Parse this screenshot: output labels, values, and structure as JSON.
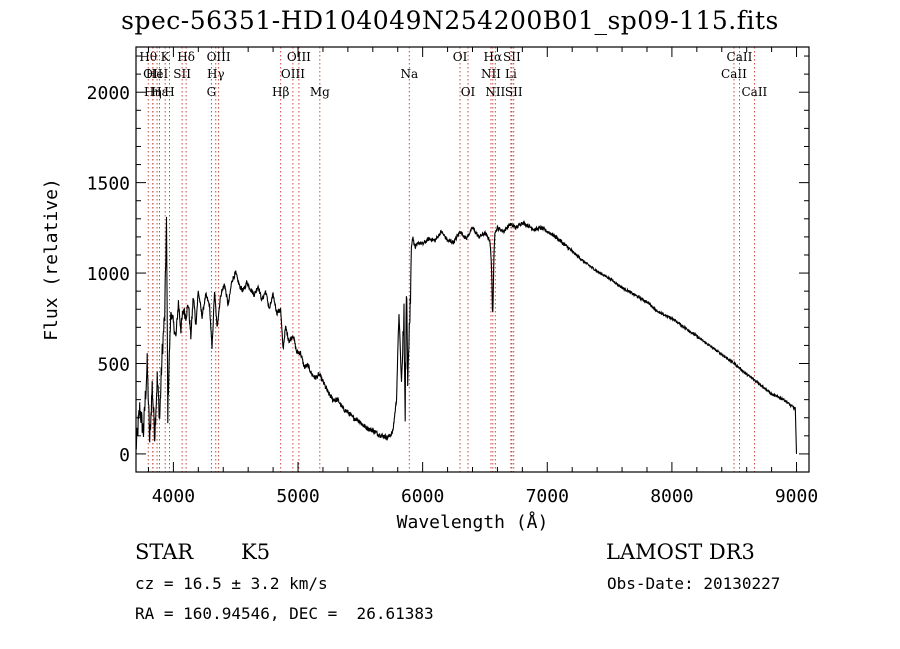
{
  "title": "spec-56351-HD104049N254200B01_sp09-115.fits",
  "info": {
    "object_class": "STAR",
    "subclass": "K5",
    "survey": "LAMOST DR3",
    "cz": "cz = 16.5 ± 3.2 km/s",
    "obs_date": "Obs-Date: 20130227",
    "coords": "RA = 160.94546, DEC =  26.61383"
  },
  "chart_data": {
    "type": "line",
    "title": "spec-56351-HD104049N254200B01_sp09-115.fits",
    "xlabel": "Wavelength (Å)",
    "ylabel": "Flux (relative)",
    "xlim": [
      3700,
      9100
    ],
    "ylim": [
      -100,
      2250
    ],
    "xticks": [
      4000,
      5000,
      6000,
      7000,
      8000,
      9000
    ],
    "xtick_labels": [
      "4000",
      "5000",
      "6000",
      "7000",
      "8000",
      "9000"
    ],
    "yticks": [
      0,
      500,
      1000,
      1500,
      2000
    ],
    "ytick_labels": [
      "0",
      "500",
      "1000",
      "1500",
      "2000"
    ],
    "spectrum": {
      "x": [
        3700,
        3730,
        3760,
        3790,
        3810,
        3830,
        3850,
        3870,
        3890,
        3910,
        3930,
        3945,
        3955,
        3968,
        3980,
        4000,
        4020,
        4040,
        4060,
        4080,
        4100,
        4120,
        4140,
        4160,
        4180,
        4200,
        4230,
        4260,
        4290,
        4310,
        4330,
        4350,
        4380,
        4410,
        4440,
        4470,
        4500,
        4530,
        4560,
        4590,
        4620,
        4650,
        4680,
        4710,
        4740,
        4770,
        4800,
        4830,
        4860,
        4880,
        4900,
        4930,
        4960,
        4990,
        5020,
        5050,
        5080,
        5110,
        5140,
        5170,
        5200,
        5240,
        5280,
        5320,
        5360,
        5400,
        5440,
        5480,
        5520,
        5560,
        5600,
        5640,
        5680,
        5720,
        5760,
        5790,
        5810,
        5830,
        5850,
        5860,
        5870,
        5880,
        5890,
        5900,
        5910,
        5920,
        5940,
        5970,
        6000,
        6050,
        6100,
        6150,
        6200,
        6250,
        6300,
        6350,
        6400,
        6450,
        6500,
        6540,
        6560,
        6580,
        6600,
        6650,
        6700,
        6750,
        6800,
        6850,
        6900,
        6950,
        7000,
        7050,
        7100,
        7150,
        7200,
        7300,
        7400,
        7500,
        7600,
        7700,
        7800,
        7900,
        8000,
        8100,
        8200,
        8300,
        8400,
        8500,
        8600,
        8700,
        8800,
        8900,
        8950,
        8990,
        9000
      ],
      "y": [
        30,
        250,
        120,
        500,
        60,
        380,
        100,
        420,
        200,
        560,
        760,
        1290,
        220,
        560,
        790,
        720,
        640,
        840,
        690,
        800,
        760,
        830,
        650,
        870,
        720,
        900,
        760,
        880,
        820,
        580,
        900,
        700,
        880,
        940,
        820,
        960,
        1000,
        930,
        900,
        950,
        910,
        880,
        930,
        850,
        900,
        800,
        880,
        780,
        800,
        580,
        700,
        620,
        660,
        560,
        560,
        480,
        490,
        440,
        420,
        440,
        400,
        340,
        300,
        300,
        250,
        230,
        200,
        190,
        160,
        140,
        130,
        110,
        100,
        90,
        120,
        300,
        780,
        400,
        720,
        300,
        830,
        500,
        690,
        800,
        1150,
        1200,
        1140,
        1170,
        1160,
        1190,
        1180,
        1230,
        1180,
        1170,
        1230,
        1190,
        1250,
        1200,
        1220,
        1180,
        950,
        1220,
        1250,
        1230,
        1270,
        1250,
        1280,
        1260,
        1240,
        1250,
        1230,
        1210,
        1180,
        1150,
        1120,
        1060,
        1010,
        970,
        920,
        880,
        840,
        780,
        750,
        700,
        650,
        600,
        550,
        500,
        440,
        390,
        330,
        300,
        270,
        250,
        0
      ]
    },
    "lines": [
      {
        "wave": 3798,
        "label": "Hθ",
        "row": 1
      },
      {
        "wave": 3835,
        "label": "OII",
        "row": 2
      },
      {
        "wave": 3835,
        "label": "Hη",
        "row": 3
      },
      {
        "wave": 3869,
        "label": "HeI",
        "row": 2
      },
      {
        "wave": 3889,
        "label": "Hε",
        "row": 3
      },
      {
        "wave": 3934,
        "label": "K",
        "row": 1
      },
      {
        "wave": 3969,
        "label": "H",
        "row": 3
      },
      {
        "wave": 4070,
        "label": "SII",
        "row": 2
      },
      {
        "wave": 4102,
        "label": "Hδ",
        "row": 1
      },
      {
        "wave": 4305,
        "label": "G",
        "row": 3
      },
      {
        "wave": 4340,
        "label": "Hγ",
        "row": 2
      },
      {
        "wave": 4363,
        "label": "OIII",
        "row": 1
      },
      {
        "wave": 4861,
        "label": "Hβ",
        "row": 3
      },
      {
        "wave": 4959,
        "label": "OIII",
        "row": 2
      },
      {
        "wave": 5007,
        "label": "OIII",
        "row": 1
      },
      {
        "wave": 5175,
        "label": "Mg",
        "row": 3
      },
      {
        "wave": 5893,
        "label": "Na",
        "row": 2
      },
      {
        "wave": 6300,
        "label": "OI",
        "row": 1
      },
      {
        "wave": 6364,
        "label": "OI",
        "row": 3
      },
      {
        "wave": 6548,
        "label": "NII",
        "row": 2
      },
      {
        "wave": 6563,
        "label": "Hα",
        "row": 1
      },
      {
        "wave": 6583,
        "label": "NII",
        "row": 3
      },
      {
        "wave": 6708,
        "label": "Li",
        "row": 2
      },
      {
        "wave": 6716,
        "label": "SII",
        "row": 1
      },
      {
        "wave": 6731,
        "label": "SII",
        "row": 3
      },
      {
        "wave": 8498,
        "label": "CaII",
        "row": 2
      },
      {
        "wave": 8542,
        "label": "CaII",
        "row": 1
      },
      {
        "wave": 8662,
        "label": "CaII",
        "row": 3
      }
    ]
  }
}
